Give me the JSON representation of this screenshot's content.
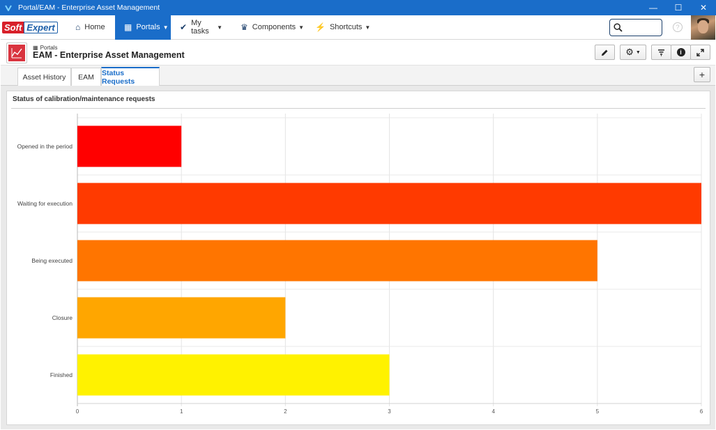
{
  "window": {
    "title": "Portal/EAM - Enterprise Asset Management",
    "minimize": "—",
    "maximize": "☐",
    "close": "✕"
  },
  "brand": {
    "part1": "Soft",
    "part2": "Expert"
  },
  "nav": {
    "items": [
      {
        "label": "Home",
        "icon": "home-icon",
        "glyph": "⌂",
        "caret": false
      },
      {
        "label": "Portals",
        "icon": "grid-icon",
        "glyph": "▦",
        "caret": true
      },
      {
        "label": "My tasks",
        "icon": "check-icon",
        "glyph": "✔",
        "caret": true
      },
      {
        "label": "Components",
        "icon": "trophy-icon",
        "glyph": "♛",
        "caret": true
      },
      {
        "label": "Shortcuts",
        "icon": "bolt-icon",
        "glyph": "⚡",
        "caret": true
      }
    ],
    "search_placeholder": "",
    "help": "?"
  },
  "header": {
    "breadcrumb": "Portals",
    "title": "EAM - Enterprise Asset Management"
  },
  "tabs": [
    {
      "label": "Asset History"
    },
    {
      "label": "EAM"
    },
    {
      "label": "Status Requests"
    }
  ],
  "panel": {
    "title": "Status of calibration/maintenance requests"
  },
  "colors": {
    "accent": "#1a6dc9",
    "bars": [
      "#ff0000",
      "#ff3a00",
      "#ff7500",
      "#ffa600",
      "#fff200"
    ]
  },
  "chart_data": {
    "type": "bar",
    "orientation": "horizontal",
    "title": "Status of calibration/maintenance requests",
    "categories": [
      "Opened in the period",
      "Waiting for execution",
      "Being executed",
      "Closure",
      "Finished"
    ],
    "values": [
      1,
      6,
      5,
      2,
      3
    ],
    "xlim": [
      0,
      6
    ],
    "xticks": [
      "0",
      "1",
      "2",
      "3",
      "4",
      "5",
      "6"
    ],
    "grid": true,
    "legend": "none"
  }
}
